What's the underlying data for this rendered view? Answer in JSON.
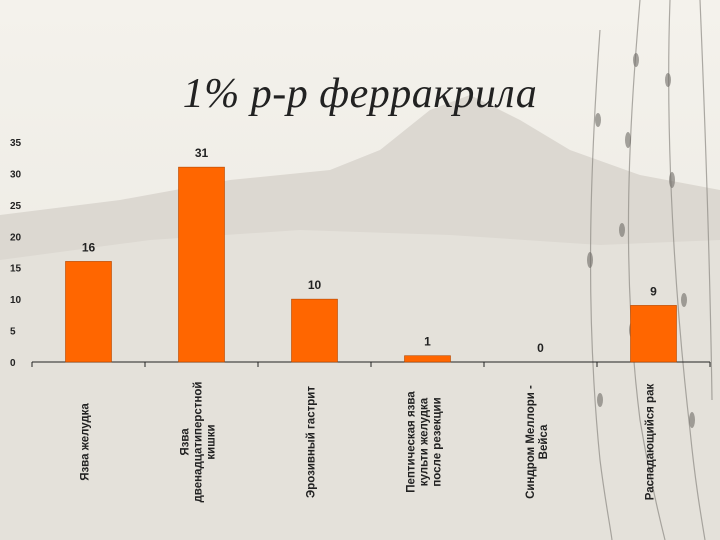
{
  "title": "1% р-р ферракрила",
  "colors": {
    "bar": "#ff6600",
    "bar_stroke": "#b34700",
    "axis": "#222222"
  },
  "chart_data": {
    "type": "bar",
    "title": "1% р-р ферракрила",
    "categories": [
      [
        "Язва желудка"
      ],
      [
        "Язва",
        "двенадцатиперстной",
        "кишки"
      ],
      [
        "Эрозивный гастрит"
      ],
      [
        "Пептическая язва",
        "культи желудка",
        "после резекции"
      ],
      [
        "Синдром Меллори -",
        "Вейса"
      ],
      [
        "Распадающийся рак"
      ]
    ],
    "values": [
      16,
      31,
      10,
      1,
      0,
      9
    ],
    "ylim": [
      0,
      35
    ],
    "yticks": [
      0,
      5,
      10,
      15,
      20,
      25,
      30,
      35
    ],
    "grid": false,
    "legend": "none"
  }
}
